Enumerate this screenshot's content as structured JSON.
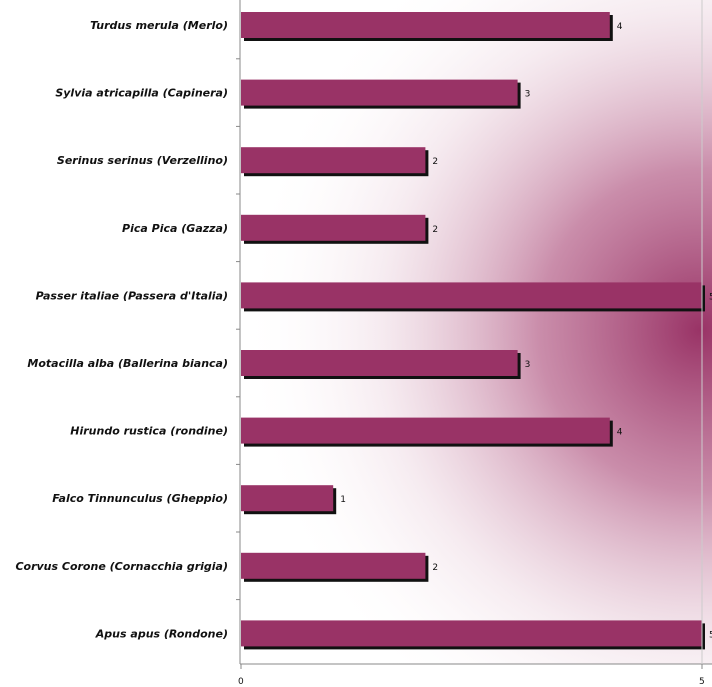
{
  "chart_data": {
    "type": "bar",
    "orientation": "horizontal",
    "title": "",
    "xlabel": "",
    "ylabel": "",
    "categories": [
      "Turdus merula (Merlo)",
      "Sylvia  atricapilla (Capinera)",
      "Serinus serinus (Verzellino)",
      "Pica Pica (Gazza)",
      "Passer italiae (Passera d'Italia)",
      "Motacilla alba (Ballerina bianca)",
      "Hirundo rustica (rondine)",
      "Falco Tinnunculus (Gheppio)",
      "Corvus Corone (Cornacchia grigia)",
      "Apus apus (Rondone)"
    ],
    "values": [
      4,
      3,
      2,
      2,
      5,
      3,
      4,
      1,
      2,
      5
    ],
    "xlim": [
      0,
      5
    ],
    "x_ticks": [
      "0",
      "5"
    ],
    "data_labels": true,
    "grid": false,
    "legend": "none",
    "bar_color": "#993366",
    "background": "radial magenta gradient behind bars"
  }
}
